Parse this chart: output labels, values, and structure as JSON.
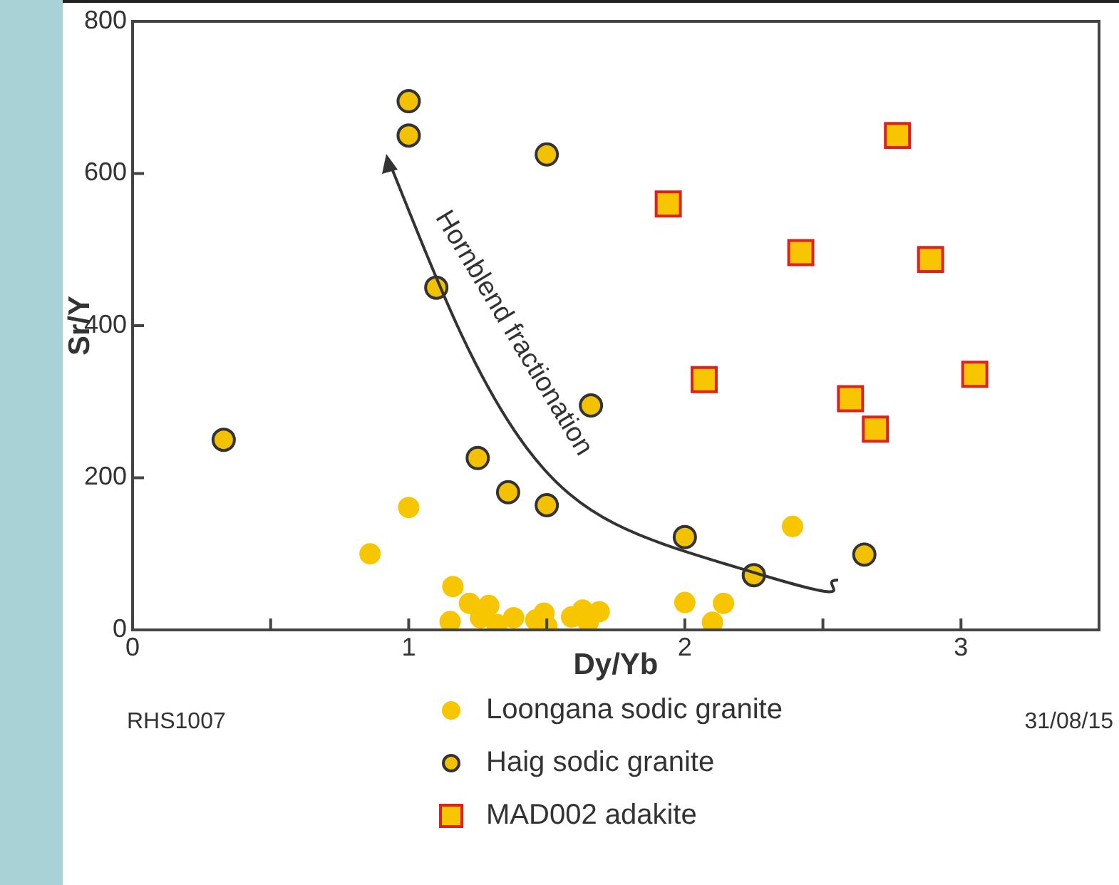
{
  "chart_data": {
    "type": "scatter",
    "xlabel": "Dy/Yb",
    "ylabel": "Sr/Y",
    "xlim": [
      0,
      3.5
    ],
    "ylim": [
      0,
      800
    ],
    "xticks": [
      0,
      {
        "value": 0.5,
        "label": null
      },
      1,
      {
        "value": 1.5,
        "label": null
      },
      2,
      {
        "value": 2.5,
        "label": null
      },
      3
    ],
    "yticks": [
      0,
      200,
      400,
      600,
      800
    ],
    "grid": false,
    "legend": "bottom",
    "series": [
      {
        "name": "Loongana sodic granite",
        "color": "#f7c600",
        "marker": "circle",
        "x": [
          1.0,
          0.86,
          1.16,
          1.15,
          1.22,
          1.29,
          1.26,
          1.32,
          1.38,
          1.46,
          1.49,
          1.5,
          1.59,
          1.63,
          1.69,
          1.65,
          2.0,
          2.14,
          2.1,
          2.39
        ],
        "values": [
          161,
          100,
          57,
          11,
          35,
          32,
          16,
          7,
          16,
          13,
          22,
          5,
          17,
          26,
          24,
          10,
          36,
          35,
          10,
          136
        ]
      },
      {
        "name": "Haig sodic granite",
        "color": "#f2c200",
        "marker": "circle",
        "x": [
          1.0,
          1.0,
          1.5,
          1.1,
          0.33,
          1.66,
          1.25,
          1.36,
          1.5,
          2.0,
          2.25,
          2.65
        ],
        "values": [
          695,
          650,
          625,
          450,
          250,
          295,
          226,
          181,
          164,
          122,
          72,
          99
        ]
      },
      {
        "name": "MAD002 adakite",
        "color": "#f7c600",
        "marker": "square",
        "x": [
          2.77,
          1.94,
          2.42,
          2.89,
          2.07,
          3.05,
          2.6,
          2.69
        ],
        "values": [
          650,
          560,
          496,
          487,
          329,
          336,
          304,
          264
        ]
      }
    ],
    "annotations": [
      "Hornblend fractionation",
      "RHS1007",
      "31/08/15"
    ]
  }
}
